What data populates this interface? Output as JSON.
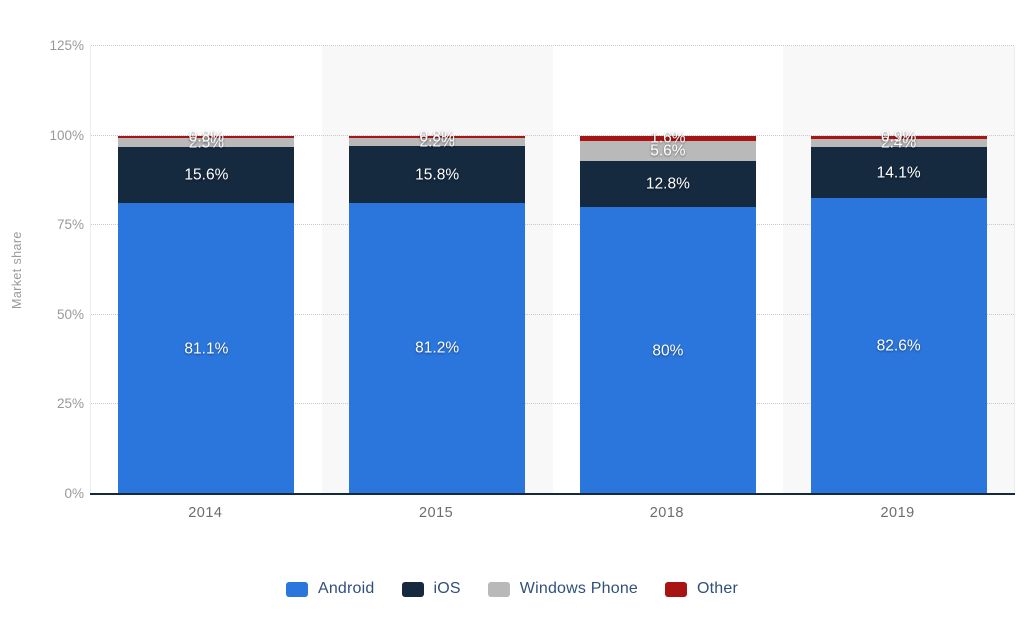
{
  "chart_data": {
    "type": "bar",
    "stacked": true,
    "title": "",
    "xlabel": "",
    "ylabel": "Market share",
    "categories": [
      "2014",
      "2015",
      "2018",
      "2019"
    ],
    "series": [
      {
        "name": "Android",
        "color": "#2b76dd",
        "values": [
          81.1,
          81.2,
          80.0,
          82.6
        ],
        "labels": [
          "81.1%",
          "81.2%",
          "80%",
          "82.6%"
        ]
      },
      {
        "name": "iOS",
        "color": "#15293f",
        "values": [
          15.6,
          15.8,
          12.8,
          14.1
        ],
        "labels": [
          "15.6%",
          "15.8%",
          "12.8%",
          "14.1%"
        ]
      },
      {
        "name": "Windows Phone",
        "color": "#b9b9b9",
        "values": [
          2.5,
          2.2,
          5.6,
          2.4
        ],
        "labels": [
          "2.5%",
          "2.2%",
          "5.6%",
          "2.4%"
        ]
      },
      {
        "name": "Other",
        "color": "#a81412",
        "values": [
          0.8,
          0.8,
          1.6,
          0.9
        ],
        "labels": [
          "0.8%",
          "0.8%",
          "1.6%",
          "0.9%"
        ]
      }
    ],
    "y_axis": {
      "ticks": [
        "0%",
        "25%",
        "50%",
        "75%",
        "100%",
        "125%"
      ],
      "tick_values": [
        0,
        25,
        50,
        75,
        100,
        125
      ],
      "ylim": [
        0,
        125
      ],
      "gridlines": "dotted"
    },
    "legend": {
      "position": "bottom",
      "entries": [
        "Android",
        "iOS",
        "Windows Phone",
        "Other"
      ]
    },
    "style": {
      "band_fill": "#f8f8f8",
      "baseline_color": "#16283c",
      "gridline_color": "#c9c9c9",
      "label_text_color": "#ffffff",
      "axis_text_color": "#999999",
      "legend_text_color": "#30507a"
    }
  }
}
